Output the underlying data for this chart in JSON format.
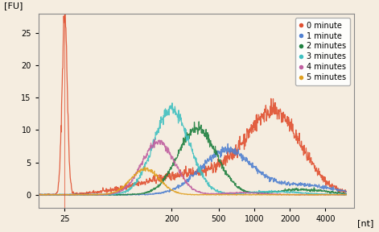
{
  "title": "",
  "ylabel": "[FU]",
  "xlabel": "[nt]",
  "background_color": "#f5ede0",
  "plot_bg_color": "#f5ede0",
  "ylim": [
    -2,
    28
  ],
  "yticks": [
    0,
    5,
    10,
    15,
    20,
    25
  ],
  "xtick_positions": [
    25,
    200,
    500,
    1000,
    2000,
    4000
  ],
  "xtick_labels": [
    "25",
    "200",
    "500",
    "1000",
    "2000",
    "4000"
  ],
  "series": [
    {
      "label": "0 minute",
      "color": "#e05030",
      "alpha": 0.9
    },
    {
      "label": "1 minute",
      "color": "#5080d0",
      "alpha": 0.9
    },
    {
      "label": "2 minutes",
      "color": "#208040",
      "alpha": 0.9
    },
    {
      "label": "3 minutes",
      "color": "#40c0c0",
      "alpha": 0.9
    },
    {
      "label": "4 minutes",
      "color": "#c060a0",
      "alpha": 0.9
    },
    {
      "label": "5 minutes",
      "color": "#e0a020",
      "alpha": 0.9
    }
  ],
  "legend_loc": "upper right",
  "legend_fontsize": 7,
  "axis_fontsize": 8,
  "tick_fontsize": 7
}
